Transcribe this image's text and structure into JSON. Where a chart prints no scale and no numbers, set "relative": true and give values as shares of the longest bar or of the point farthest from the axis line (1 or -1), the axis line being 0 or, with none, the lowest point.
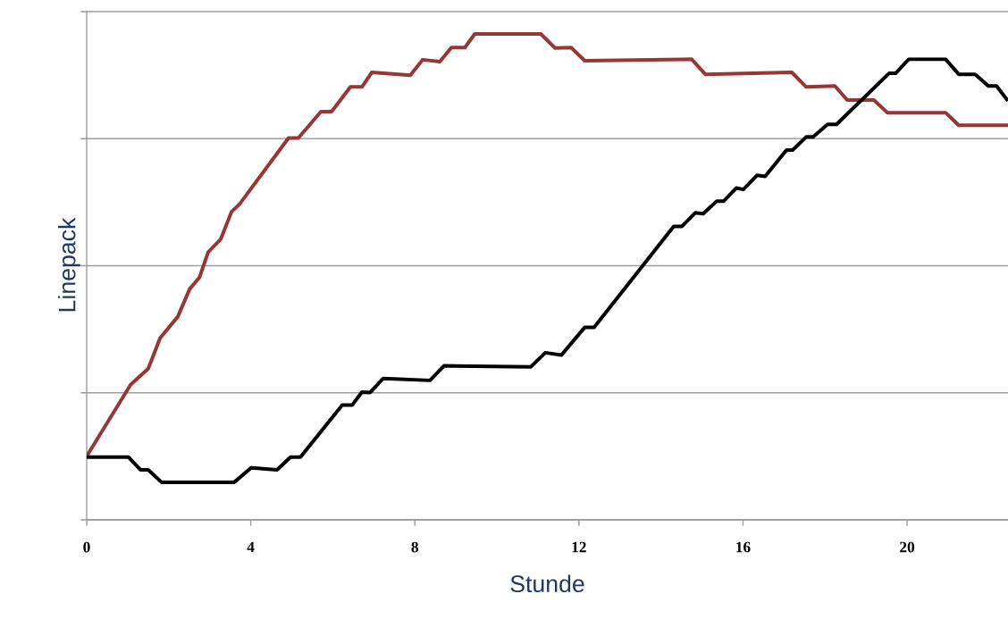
{
  "chart_data": {
    "type": "line",
    "xlabel": "Stunde",
    "ylabel": "Linepack",
    "relative": true,
    "grid": "y",
    "xlim": [
      0,
      22.46
    ],
    "xticks": [
      0,
      4,
      8,
      12,
      16,
      20
    ],
    "series": [
      {
        "color": "#953735",
        "x": [
          0,
          1.07,
          1.5,
          1.79,
          2.22,
          2.51,
          2.75,
          2.96,
          3.27,
          3.53,
          3.73,
          4.92,
          5.16,
          5.71,
          5.97,
          6.43,
          6.71,
          6.95,
          7.89,
          8.19,
          8.61,
          8.89,
          9.22,
          9.46,
          11.07,
          11.42,
          11.81,
          12.14,
          14.75,
          15.08,
          17.19,
          17.54,
          18.24,
          18.54,
          19.19,
          19.52,
          20.94,
          21.26,
          22.46
        ],
        "values": [
          0.131,
          0.278,
          0.311,
          0.374,
          0.418,
          0.475,
          0.499,
          0.551,
          0.578,
          0.634,
          0.65,
          0.786,
          0.786,
          0.84,
          0.84,
          0.891,
          0.891,
          0.921,
          0.915,
          0.947,
          0.943,
          0.972,
          0.972,
          1.0,
          1.0,
          0.971,
          0.972,
          0.945,
          0.948,
          0.917,
          0.921,
          0.891,
          0.893,
          0.864,
          0.864,
          0.838,
          0.838,
          0.812,
          0.812
        ]
      },
      {
        "color": "#000000",
        "x": [
          0,
          1.02,
          1.31,
          1.5,
          1.83,
          3.59,
          4.01,
          4.64,
          4.97,
          5.21,
          6.23,
          6.47,
          6.71,
          6.91,
          7.23,
          8.37,
          8.71,
          10.83,
          11.18,
          11.57,
          12.14,
          12.37,
          14.31,
          14.51,
          14.84,
          15.03,
          15.36,
          15.53,
          15.84,
          16.01,
          16.34,
          16.54,
          17.06,
          17.21,
          17.54,
          17.71,
          18.06,
          18.28,
          19.56,
          19.72,
          20.04,
          20.94,
          21.26,
          21.66,
          21.98,
          22.18,
          22.46
        ],
        "values": [
          0.129,
          0.129,
          0.103,
          0.103,
          0.077,
          0.077,
          0.107,
          0.103,
          0.129,
          0.129,
          0.236,
          0.236,
          0.263,
          0.262,
          0.291,
          0.287,
          0.317,
          0.315,
          0.344,
          0.339,
          0.396,
          0.396,
          0.604,
          0.604,
          0.632,
          0.63,
          0.656,
          0.656,
          0.683,
          0.68,
          0.709,
          0.707,
          0.761,
          0.761,
          0.788,
          0.788,
          0.814,
          0.814,
          0.919,
          0.919,
          0.948,
          0.948,
          0.917,
          0.917,
          0.893,
          0.893,
          0.862
        ]
      }
    ]
  }
}
